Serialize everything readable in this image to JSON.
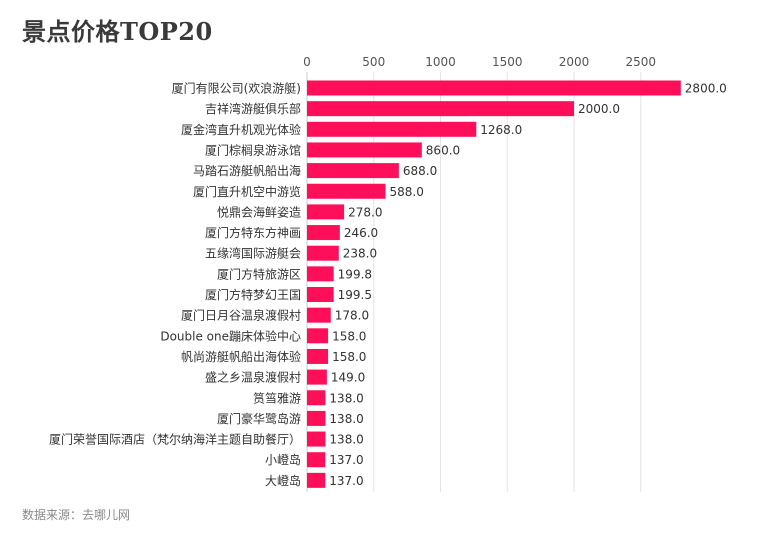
{
  "title": "景点价格TOP20",
  "source": "数据来源：去哪儿网",
  "chart_data": {
    "type": "bar",
    "orientation": "horizontal",
    "title": "景点价格TOP20",
    "xlabel": "",
    "ylabel": "",
    "xlim": [
      0,
      2900
    ],
    "xticks": [
      0,
      500,
      1000,
      1500,
      2000,
      2500
    ],
    "grid": true,
    "bar_color": "#ff0f5a",
    "categories": [
      "厦门有限公司(欢浪游艇)",
      "吉祥湾游艇俱乐部",
      "厦金湾直升机观光体验",
      "厦门棕榈泉游泳馆",
      "马踏石游艇帆船出海",
      "厦门直升机空中游览",
      "悦鼎会海鲜姿造",
      "厦门方特东方神画",
      "五缘湾国际游艇会",
      "厦门方特旅游区",
      "厦门方特梦幻王国",
      "厦门日月谷温泉渡假村",
      "Double one蹦床体验中心",
      "帆尚游艇帆船出海体验",
      "盛之乡温泉渡假村",
      "筼筜雅游",
      "厦门豪华鹭岛游",
      "厦门荣誉国际酒店（梵尔纳海洋主题自助餐厅）",
      "小嶝岛",
      "大嶝岛"
    ],
    "values": [
      2800.0,
      2000.0,
      1268.0,
      860.0,
      688.0,
      588.0,
      278.0,
      246.0,
      238.0,
      199.8,
      199.5,
      178.0,
      158.0,
      158.0,
      149.0,
      138.0,
      138.0,
      138.0,
      137.0,
      137.0
    ],
    "value_labels": [
      "2800.0",
      "2000.0",
      "1268.0",
      "860.0",
      "688.0",
      "588.0",
      "278.0",
      "246.0",
      "238.0",
      "199.8",
      "199.5",
      "178.0",
      "158.0",
      "158.0",
      "149.0",
      "138.0",
      "138.0",
      "138.0",
      "137.0",
      "137.0"
    ]
  }
}
